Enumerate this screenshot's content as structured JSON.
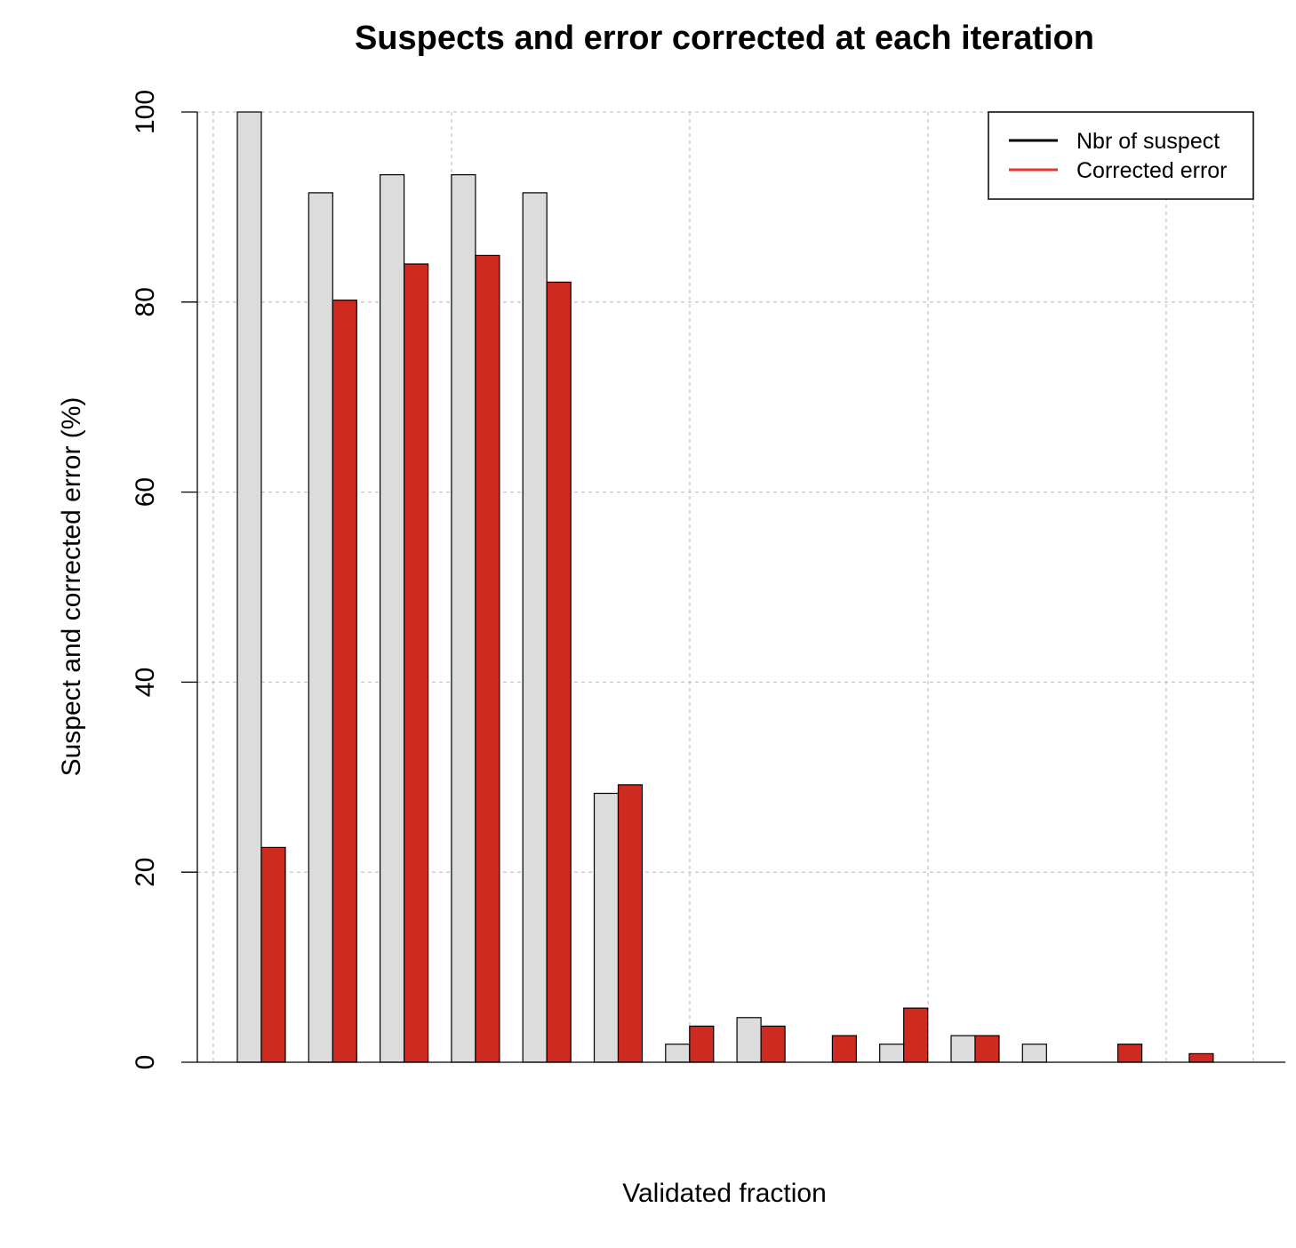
{
  "chart_data": {
    "type": "bar",
    "title": "Suspects and error corrected at each iteration",
    "xlabel": "Validated fraction",
    "ylabel": "Suspect and corrected error (%)",
    "ylim": [
      0,
      100
    ],
    "yticks": [
      0,
      20,
      40,
      60,
      80,
      100
    ],
    "grid": true,
    "legend_position": "top-right",
    "series": [
      {
        "name": "Nbr of suspect",
        "legend_line_color": "#000000",
        "bar_color": "#dcdcdc",
        "values": [
          100,
          91.5,
          93.4,
          93.4,
          91.5,
          28.3,
          1.9,
          4.7,
          0,
          1.9,
          2.8,
          1.9,
          0,
          0,
          0
        ]
      },
      {
        "name": "Corrected error",
        "legend_line_color": "#e8342a",
        "bar_color": "#cf2a1f",
        "values": [
          22.6,
          80.2,
          84.0,
          84.9,
          82.1,
          29.2,
          3.8,
          3.8,
          2.8,
          5.7,
          2.8,
          0,
          1.9,
          0.9,
          0
        ]
      }
    ]
  }
}
